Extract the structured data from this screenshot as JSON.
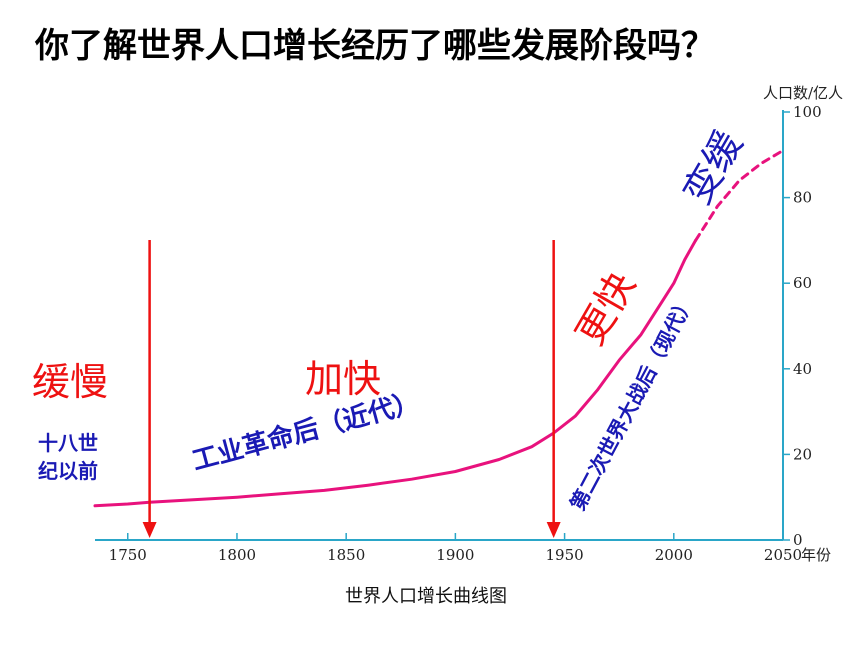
{
  "title": "你了解世界人口增长经历了哪些发展阶段吗？",
  "chart_data": {
    "type": "line",
    "caption": "世界人口增长曲线图",
    "ylabel": "人口数/亿人",
    "xunit": "年份",
    "xlim": [
      1735,
      2050
    ],
    "ylim": [
      0,
      100
    ],
    "x_ticks": [
      "1750",
      "1800",
      "1850",
      "1900",
      "1950",
      "2000",
      "2050"
    ],
    "y_ticks": [
      "0",
      "20",
      "40",
      "60",
      "80",
      "100"
    ],
    "series": [
      {
        "x": [
          1735,
          1750,
          1760,
          1780,
          1800,
          1820,
          1840,
          1860,
          1880,
          1900,
          1920,
          1935,
          1945,
          1955,
          1965,
          1975,
          1985,
          1995,
          2000,
          2005,
          2010
        ],
        "y": [
          8.0,
          8.4,
          8.8,
          9.4,
          10.0,
          10.8,
          11.6,
          12.8,
          14.2,
          16.0,
          18.8,
          21.8,
          25.0,
          29.0,
          35.0,
          42.0,
          48.0,
          56.0,
          60.0,
          65.5,
          70.0
        ],
        "color": "#e8127d",
        "style": "solid"
      },
      {
        "x": [
          2010,
          2020,
          2030,
          2040,
          2050
        ],
        "y": [
          70.0,
          78.0,
          84.0,
          88.0,
          91.0
        ],
        "color": "#e8127d",
        "style": "dashed"
      }
    ],
    "markers": [
      {
        "x": 1760,
        "color": "#ee1111"
      },
      {
        "x": 1945,
        "color": "#ee1111"
      }
    ],
    "annotations": {
      "slow": "缓慢",
      "pre18_line1": "十八世",
      "pre18_line2": "纪以前",
      "faster": "加快",
      "industrial": "工业革命后（近代）",
      "fastest": "更快",
      "postwar": "第二次世界大战后（现代）",
      "slowing": "变缓"
    }
  }
}
